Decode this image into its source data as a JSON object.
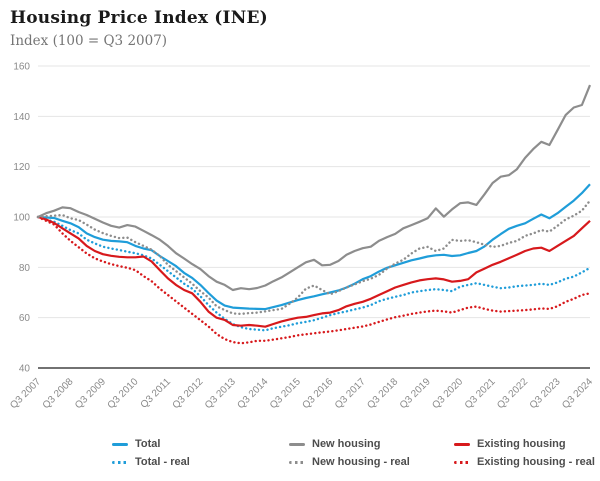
{
  "chart_data": {
    "type": "line",
    "title": "Housing Price Index (INE)",
    "subtitle": "Index (100 = Q3 2007)",
    "x_unit": "quarter",
    "x_start": "Q3 2007",
    "x_end": "Q3 2024",
    "x_tick_every": 4,
    "x_tick_labels": [
      "Q3 2007",
      "Q3 2008",
      "Q3 2009",
      "Q3 2010",
      "Q3 2011",
      "Q3 2012",
      "Q3 2013",
      "Q3 2014",
      "Q3 2015",
      "Q3 2016",
      "Q3 2017",
      "Q3 2018",
      "Q3 2019",
      "Q3 2020",
      "Q3 2021",
      "Q3 2022",
      "Q3 2023",
      "Q3 2024"
    ],
    "y_ticks": [
      40,
      60,
      80,
      100,
      120,
      140,
      160
    ],
    "ylim": [
      40,
      160
    ],
    "grid": "horizontal",
    "legend_position": "bottom",
    "colors": {
      "grid": "#e4e4e4",
      "axis": "#444444",
      "tick_text": "#8a8a8a",
      "title": "#1a1a1a",
      "subtitle": "#757575",
      "legend_text": "#4d4d4d",
      "blue": "#1f9dd9",
      "gray": "#8d8d8d",
      "red": "#d7191c"
    },
    "series": [
      {
        "name": "Total",
        "color": "#1f9dd9",
        "style": "solid",
        "values": [
          100,
          99.8,
          99.6,
          98.5,
          97.5,
          96,
          93.5,
          92,
          91,
          90.5,
          90.3,
          90,
          88.5,
          87.5,
          86.8,
          84.5,
          82.5,
          80.5,
          77.8,
          75.8,
          73,
          69.8,
          66.8,
          64.8,
          64,
          63.8,
          63.6,
          63.5,
          63.4,
          64.2,
          65,
          66,
          67,
          67.8,
          68.5,
          69.3,
          70,
          70.8,
          72,
          73.5,
          75.3,
          76.5,
          78.3,
          79.8,
          80.8,
          81.8,
          82.8,
          83.5,
          84.3,
          84.8,
          85,
          84.5,
          84.8,
          85.7,
          86.5,
          88.3,
          91,
          93.2,
          95.3,
          96.5,
          97.5,
          99.3,
          101,
          99.5,
          101.5,
          104,
          106.5,
          109.5,
          113
        ]
      },
      {
        "name": "New housing",
        "color": "#8d8d8d",
        "style": "solid",
        "values": [
          100,
          101.5,
          102.5,
          103.8,
          103.5,
          102,
          100.8,
          99.3,
          97.8,
          96.5,
          95.8,
          96.8,
          96.2,
          94.5,
          92.8,
          91,
          88.5,
          85.6,
          83.5,
          81.3,
          79.3,
          76.5,
          74.3,
          73,
          71,
          71.7,
          71.3,
          71.8,
          72.8,
          74.5,
          76,
          78,
          80,
          82,
          83,
          80.8,
          81,
          82.5,
          85,
          86.5,
          87.6,
          88.2,
          90.5,
          92,
          93.3,
          95.5,
          96.8,
          98.1,
          99.5,
          103.4,
          100.1,
          103,
          105.5,
          105.8,
          104.8,
          109,
          113.5,
          116,
          116.6,
          119,
          123.5,
          127,
          129.9,
          128.6,
          134.5,
          140.5,
          143.5,
          144.5,
          152.4
        ]
      },
      {
        "name": "Existing housing",
        "color": "#d7191c",
        "style": "solid",
        "values": [
          100,
          99,
          97.6,
          95.5,
          93.5,
          91.5,
          88.5,
          86.5,
          85.2,
          84.6,
          84.2,
          84,
          84,
          84.3,
          82.3,
          78.9,
          75.6,
          73,
          71,
          69.7,
          66.3,
          62.4,
          60,
          59.1,
          57.1,
          56.8,
          57.1,
          56.8,
          56.4,
          57.5,
          58.5,
          59.3,
          60,
          60.3,
          61,
          61.7,
          62,
          63,
          64.5,
          65.5,
          66.3,
          67.5,
          69,
          70.5,
          72,
          73,
          74,
          74.8,
          75.3,
          75.6,
          75.2,
          74.3,
          74.6,
          75.3,
          78,
          79.5,
          81,
          82.2,
          83.6,
          85,
          86.5,
          87.5,
          87.8,
          86.5,
          88.5,
          90.5,
          92.5,
          95.5,
          98.5
        ]
      },
      {
        "name": "Total - real",
        "color": "#1f9dd9",
        "style": "dotted",
        "values": [
          100,
          99,
          98.1,
          96.5,
          94.8,
          93.5,
          91,
          89.5,
          88.2,
          87.5,
          86.9,
          86.2,
          85.6,
          84.8,
          83.5,
          81,
          78.5,
          76,
          73.5,
          71.5,
          68.5,
          65,
          62,
          59.5,
          57.5,
          56.2,
          55.5,
          55.2,
          55,
          55.8,
          56.4,
          57,
          57.8,
          58.3,
          59,
          60,
          61,
          61.8,
          62.5,
          63.3,
          64,
          65,
          66.5,
          67.5,
          68.3,
          69,
          70,
          70.5,
          71,
          71.3,
          71,
          70.5,
          72.3,
          73,
          73.7,
          73,
          72.3,
          71.7,
          72,
          72.5,
          72.8,
          73,
          73.5,
          73,
          74,
          75.5,
          76.3,
          78,
          79.8
        ]
      },
      {
        "name": "New housing - real",
        "color": "#8d8d8d",
        "style": "dotted",
        "values": [
          100,
          100.3,
          100.5,
          100.8,
          99.5,
          98.8,
          97,
          95,
          93.6,
          92.5,
          91.6,
          91.8,
          90,
          88.5,
          87,
          84.5,
          81,
          78.5,
          76,
          73.5,
          70.5,
          68,
          64.5,
          63,
          61.7,
          61.5,
          61.8,
          62,
          62.5,
          63,
          63.5,
          65.5,
          68,
          71.5,
          72.8,
          71,
          69.3,
          70.5,
          72,
          73.2,
          74.5,
          75.5,
          77,
          79.5,
          81.5,
          83,
          85.5,
          87.5,
          88.1,
          86.5,
          87.5,
          90.9,
          90.5,
          90.8,
          90,
          89,
          88.1,
          88.5,
          89.7,
          90.5,
          92.5,
          93.5,
          94.8,
          94.2,
          96.5,
          99,
          100.5,
          102.5,
          106.5
        ]
      },
      {
        "name": "Existing housing - real",
        "color": "#d7191c",
        "style": "dotted",
        "values": [
          100,
          98.5,
          97,
          93.5,
          90.5,
          88,
          85.5,
          83.6,
          82.3,
          81.3,
          80.5,
          79.8,
          78.9,
          76.5,
          74.5,
          71.5,
          69,
          66.5,
          64,
          61.5,
          59,
          56.5,
          53.5,
          51.5,
          50.3,
          49.8,
          50.2,
          50.8,
          50.8,
          51.3,
          51.8,
          52.3,
          53,
          53.4,
          53.8,
          54.2,
          54.5,
          55,
          55.5,
          56,
          56.5,
          57.3,
          58.3,
          59.3,
          60.2,
          60.8,
          61.5,
          62,
          62.5,
          62.8,
          62.5,
          62,
          63,
          64,
          64.4,
          63.5,
          62.8,
          62.4,
          62.6,
          62.8,
          63,
          63.3,
          63.7,
          63.5,
          64.5,
          66.3,
          67.5,
          69,
          69.7
        ]
      }
    ]
  }
}
